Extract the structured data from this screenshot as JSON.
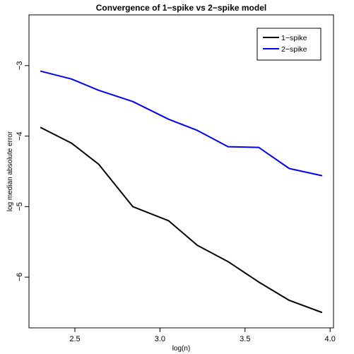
{
  "chart_data": {
    "type": "line",
    "title": "Convergence of 1−spike vs 2−spike model",
    "xlabel": "log(n)",
    "ylabel": "log median absolute error",
    "xlim": [
      2.23,
      4.02
    ],
    "ylim": [
      -6.72,
      -2.28
    ],
    "xticks": [
      2.5,
      3.0,
      3.5,
      4.0
    ],
    "xtick_labels": [
      "2.5",
      "3.0",
      "3.5",
      "4.0"
    ],
    "yticks": [
      -6,
      -5,
      -4,
      -3
    ],
    "ytick_labels": [
      "−6",
      "−5",
      "−4",
      "−3"
    ],
    "grid": false,
    "legend_position": "top-right",
    "x": [
      2.3,
      2.48,
      2.64,
      2.84,
      3.05,
      3.22,
      3.4,
      3.58,
      3.76,
      3.95
    ],
    "series": [
      {
        "name": "1−spike",
        "color": "#000000",
        "values": [
          -3.88,
          -4.1,
          -4.4,
          -5.0,
          -5.2,
          -5.55,
          -5.78,
          -6.07,
          -6.33,
          -6.5
        ]
      },
      {
        "name": "2−spike",
        "color": "#0000ff",
        "values": [
          -3.08,
          -3.19,
          -3.35,
          -3.51,
          -3.76,
          -3.92,
          -4.15,
          -4.16,
          -4.46,
          -4.56
        ]
      }
    ]
  }
}
